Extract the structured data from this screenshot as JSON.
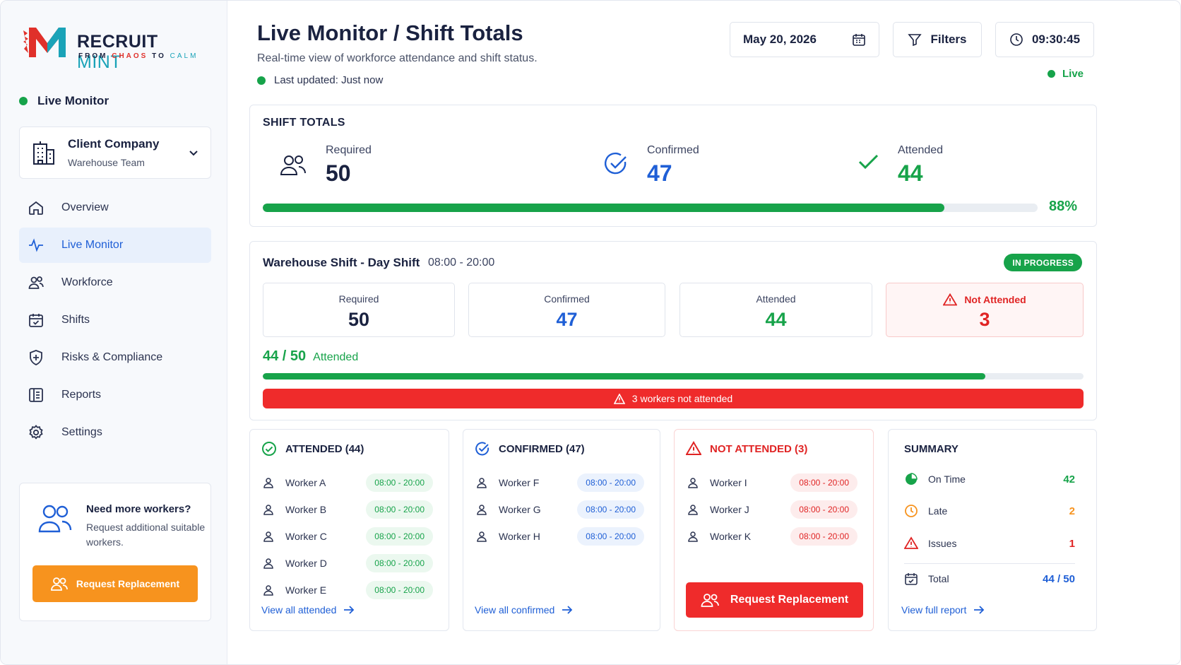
{
  "brand": {
    "name_a": "RECRUIT",
    "name_b": "MINT",
    "tag_a": "FROM",
    "tag_b": "CHAOS",
    "tag_c": "TO",
    "tag_d": "CALM"
  },
  "sidebar": {
    "live_label": "Live Monitor",
    "client": {
      "name": "Client Company",
      "team": "Warehouse Team"
    },
    "items": [
      {
        "label": "Overview",
        "icon": "home-icon"
      },
      {
        "label": "Live Monitor",
        "icon": "pulse-icon",
        "active": true
      },
      {
        "label": "Workforce",
        "icon": "users-icon"
      },
      {
        "label": "Shifts",
        "icon": "calendar-check-icon"
      },
      {
        "label": "Risks & Compliance",
        "icon": "shield-icon"
      },
      {
        "label": "Reports",
        "icon": "report-icon"
      },
      {
        "label": "Settings",
        "icon": "gear-icon"
      }
    ],
    "promo": {
      "title": "Need more workers?",
      "text": "Request additional suitable workers.",
      "button": "Request Replacement"
    }
  },
  "header": {
    "title": "Live Monitor / Shift Totals",
    "subtitle": "Real-time view of workforce attendance and shift status.",
    "updated": "Last updated: Just now",
    "date": "May 20, 2026",
    "filters": "Filters",
    "time": "09:30:45",
    "live": "Live"
  },
  "totals": {
    "title": "SHIFT TOTALS",
    "required_label": "Required",
    "required": "50",
    "confirmed_label": "Confirmed",
    "confirmed": "47",
    "attended_label": "Attended",
    "attended": "44",
    "progress": 0.88,
    "percent": "88%"
  },
  "shift": {
    "title": "Warehouse Shift - Day Shift",
    "time": "08:00 - 20:00",
    "status": "IN PROGRESS",
    "required_label": "Required",
    "required": "50",
    "confirmed_label": "Confirmed",
    "confirmed": "47",
    "attended_label": "Attended",
    "attended": "44",
    "not_attended_label": "Not Attended",
    "not_attended": "3",
    "att_count": "44 / 50",
    "att_word": "Attended",
    "progress": 0.88,
    "banner": "3 workers not attended"
  },
  "attended": {
    "title": "ATTENDED (44)",
    "rows": [
      {
        "name": "Worker A",
        "time": "08:00 - 20:00"
      },
      {
        "name": "Worker B",
        "time": "08:00 - 20:00"
      },
      {
        "name": "Worker C",
        "time": "08:00 - 20:00"
      },
      {
        "name": "Worker D",
        "time": "08:00 - 20:00"
      },
      {
        "name": "Worker E",
        "time": "08:00 - 20:00"
      }
    ],
    "link": "View all attended"
  },
  "confirmed": {
    "title": "CONFIRMED (47)",
    "rows": [
      {
        "name": "Worker F",
        "time": "08:00 - 20:00"
      },
      {
        "name": "Worker G",
        "time": "08:00 - 20:00"
      },
      {
        "name": "Worker H",
        "time": "08:00 - 20:00"
      }
    ],
    "link": "View all confirmed"
  },
  "not_attended": {
    "title": "NOT ATTENDED (3)",
    "rows": [
      {
        "name": "Worker I",
        "time": "08:00 - 20:00"
      },
      {
        "name": "Worker J",
        "time": "08:00 - 20:00"
      },
      {
        "name": "Worker K",
        "time": "08:00 - 20:00"
      }
    ],
    "button": "Request Replacement"
  },
  "summary": {
    "title": "SUMMARY",
    "on_time_label": "On Time",
    "on_time": "42",
    "late_label": "Late",
    "late": "2",
    "issues_label": "Issues",
    "issues": "1",
    "total_label": "Total",
    "total": "44 / 50",
    "link": "View full report"
  },
  "colors": {
    "green": "#17a34a",
    "blue": "#1f5fd6",
    "red": "#e02424",
    "orange": "#f7931e"
  }
}
